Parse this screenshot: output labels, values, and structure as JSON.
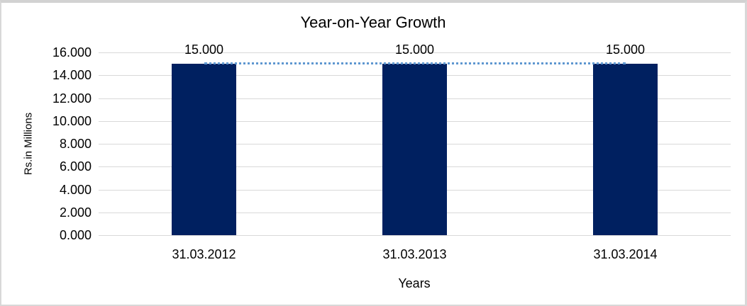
{
  "chart_data": {
    "type": "bar",
    "title": "Year-on-Year Growth",
    "xlabel": "Years",
    "ylabel": "Rs.in Millions",
    "categories": [
      "31.03.2012",
      "31.03.2013",
      "31.03.2014"
    ],
    "values": [
      15.0,
      15.0,
      15.0
    ],
    "data_labels": [
      "15.000",
      "15.000",
      "15.000"
    ],
    "y_ticks": [
      "16.000",
      "14.000",
      "12.000",
      "10.000",
      "8.000",
      "6.000",
      "4.000",
      "2.000",
      "0.000"
    ],
    "ylim": [
      0,
      16
    ],
    "grid": true,
    "legend": false,
    "trendline": {
      "style": "dotted",
      "value": 15.0,
      "color": "#5e97d0"
    },
    "colors": {
      "bar": "#002060",
      "gridline": "#d9d9d9",
      "text": "#000000",
      "frame_border": "#d2d2d2",
      "background": "#ffffff"
    }
  }
}
